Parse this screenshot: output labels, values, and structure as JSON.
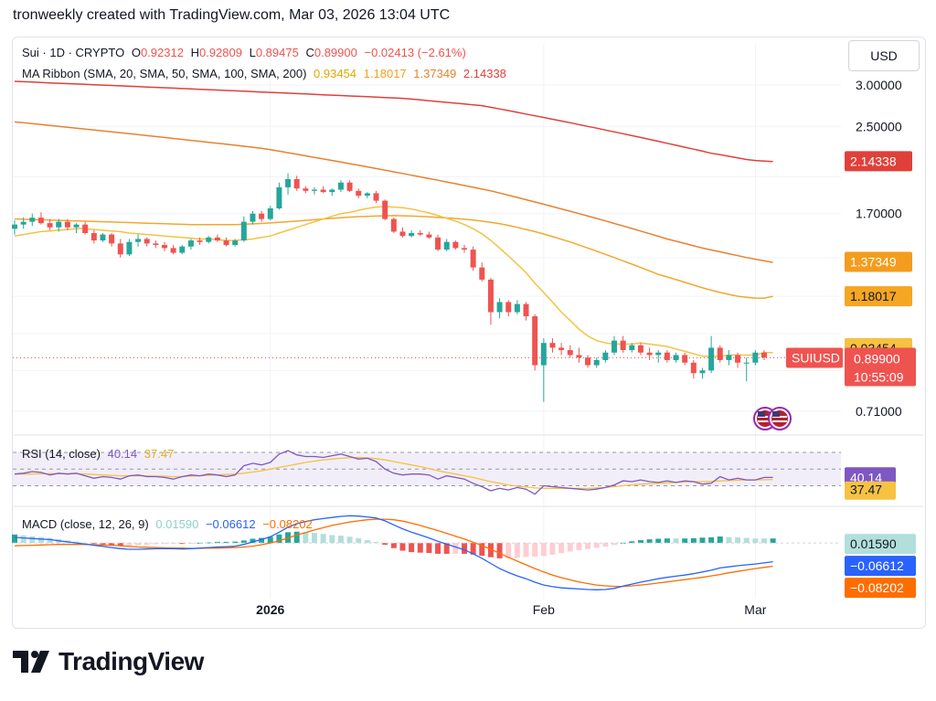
{
  "header": {
    "title": "tronweekly created with TradingView.com, Mar 03, 2026 13:04 UTC"
  },
  "currency_button": "USD",
  "logo_text": "TradingView",
  "colors": {
    "up": "#26a69a",
    "down": "#ef5350",
    "sma20": "#f5c242",
    "sma50": "#f0a830",
    "sma100": "#e8812e",
    "sma200": "#e0403a",
    "rsi": "#7e57c2",
    "macd": "#2962ff",
    "signal": "#ff6d00"
  },
  "main_legend": {
    "symbol": "Sui · 1D · CRYPTO",
    "o_label": "O",
    "o": "0.92312",
    "h_label": "H",
    "h": "0.92809",
    "l_label": "L",
    "l": "0.89475",
    "c_label": "C",
    "c": "0.89900",
    "change": "−0.02413 (−2.61%)"
  },
  "ribbon_legend": {
    "name": "MA Ribbon (SMA, 20, SMA, 50, SMA, 100, SMA, 200)",
    "v1": "0.93454",
    "v2": "1.18017",
    "v3": "1.37349",
    "v4": "2.14338"
  },
  "rsi_legend": {
    "name": "RSI (14, close)",
    "v1": "40.14",
    "v2": "37.47"
  },
  "macd_legend": {
    "name": "MACD (close, 12, 26, 9)",
    "v1": "0.01590",
    "v2": "−0.06612",
    "v3": "−0.08202"
  },
  "price_axis_ticks": [
    "3.00000",
    "2.50000",
    "1.70000",
    "0.71000"
  ],
  "price_badges": {
    "sma200": "2.14338",
    "sma100": "1.37349",
    "sma50": "1.18017",
    "sma20": "0.93454",
    "symbol": "SUIUSD",
    "last": "0.89900",
    "countdown": "10:55:09"
  },
  "rsi_badges": {
    "rsi": "40.14",
    "ma": "37.47"
  },
  "macd_badges": {
    "hist": "0.01590",
    "macd": "−0.06612",
    "signal": "−0.08202"
  },
  "x_axis_labels": [
    "2026",
    "Feb",
    "Mar"
  ],
  "chart_data": {
    "type": "candlestick",
    "interval": "1D",
    "log_scale": true,
    "ylim": [
      0.66,
      3.1
    ],
    "last_price": 0.899,
    "candles": [
      {
        "o": 1.59,
        "h": 1.65,
        "l": 1.55,
        "c": 1.62
      },
      {
        "o": 1.62,
        "h": 1.67,
        "l": 1.59,
        "c": 1.64
      },
      {
        "o": 1.64,
        "h": 1.7,
        "l": 1.61,
        "c": 1.67
      },
      {
        "o": 1.67,
        "h": 1.71,
        "l": 1.62,
        "c": 1.63
      },
      {
        "o": 1.63,
        "h": 1.66,
        "l": 1.58,
        "c": 1.6
      },
      {
        "o": 1.6,
        "h": 1.66,
        "l": 1.57,
        "c": 1.64
      },
      {
        "o": 1.64,
        "h": 1.66,
        "l": 1.58,
        "c": 1.6
      },
      {
        "o": 1.6,
        "h": 1.63,
        "l": 1.56,
        "c": 1.62
      },
      {
        "o": 1.62,
        "h": 1.64,
        "l": 1.55,
        "c": 1.56
      },
      {
        "o": 1.56,
        "h": 1.58,
        "l": 1.49,
        "c": 1.51
      },
      {
        "o": 1.51,
        "h": 1.56,
        "l": 1.5,
        "c": 1.55
      },
      {
        "o": 1.55,
        "h": 1.56,
        "l": 1.47,
        "c": 1.49
      },
      {
        "o": 1.49,
        "h": 1.52,
        "l": 1.4,
        "c": 1.42
      },
      {
        "o": 1.42,
        "h": 1.52,
        "l": 1.41,
        "c": 1.5
      },
      {
        "o": 1.5,
        "h": 1.55,
        "l": 1.47,
        "c": 1.52
      },
      {
        "o": 1.52,
        "h": 1.53,
        "l": 1.47,
        "c": 1.49
      },
      {
        "o": 1.49,
        "h": 1.51,
        "l": 1.46,
        "c": 1.48
      },
      {
        "o": 1.48,
        "h": 1.5,
        "l": 1.44,
        "c": 1.46
      },
      {
        "o": 1.46,
        "h": 1.48,
        "l": 1.42,
        "c": 1.43
      },
      {
        "o": 1.43,
        "h": 1.48,
        "l": 1.42,
        "c": 1.47
      },
      {
        "o": 1.47,
        "h": 1.52,
        "l": 1.45,
        "c": 1.51
      },
      {
        "o": 1.51,
        "h": 1.53,
        "l": 1.48,
        "c": 1.5
      },
      {
        "o": 1.5,
        "h": 1.54,
        "l": 1.49,
        "c": 1.53
      },
      {
        "o": 1.53,
        "h": 1.55,
        "l": 1.5,
        "c": 1.51
      },
      {
        "o": 1.51,
        "h": 1.53,
        "l": 1.47,
        "c": 1.48
      },
      {
        "o": 1.48,
        "h": 1.52,
        "l": 1.47,
        "c": 1.51
      },
      {
        "o": 1.51,
        "h": 1.68,
        "l": 1.5,
        "c": 1.64
      },
      {
        "o": 1.64,
        "h": 1.72,
        "l": 1.62,
        "c": 1.7
      },
      {
        "o": 1.7,
        "h": 1.72,
        "l": 1.64,
        "c": 1.66
      },
      {
        "o": 1.66,
        "h": 1.76,
        "l": 1.65,
        "c": 1.74
      },
      {
        "o": 1.74,
        "h": 1.95,
        "l": 1.73,
        "c": 1.91
      },
      {
        "o": 1.91,
        "h": 2.03,
        "l": 1.85,
        "c": 1.98
      },
      {
        "o": 1.98,
        "h": 2.01,
        "l": 1.88,
        "c": 1.9
      },
      {
        "o": 1.9,
        "h": 1.92,
        "l": 1.86,
        "c": 1.88
      },
      {
        "o": 1.88,
        "h": 1.91,
        "l": 1.85,
        "c": 1.89
      },
      {
        "o": 1.89,
        "h": 1.92,
        "l": 1.86,
        "c": 1.87
      },
      {
        "o": 1.87,
        "h": 1.9,
        "l": 1.84,
        "c": 1.89
      },
      {
        "o": 1.89,
        "h": 1.97,
        "l": 1.87,
        "c": 1.95
      },
      {
        "o": 1.95,
        "h": 1.97,
        "l": 1.87,
        "c": 1.88
      },
      {
        "o": 1.88,
        "h": 1.9,
        "l": 1.82,
        "c": 1.84
      },
      {
        "o": 1.84,
        "h": 1.87,
        "l": 1.82,
        "c": 1.86
      },
      {
        "o": 1.86,
        "h": 1.88,
        "l": 1.78,
        "c": 1.8
      },
      {
        "o": 1.8,
        "h": 1.81,
        "l": 1.65,
        "c": 1.66
      },
      {
        "o": 1.66,
        "h": 1.67,
        "l": 1.56,
        "c": 1.57
      },
      {
        "o": 1.57,
        "h": 1.6,
        "l": 1.53,
        "c": 1.54
      },
      {
        "o": 1.54,
        "h": 1.58,
        "l": 1.53,
        "c": 1.56
      },
      {
        "o": 1.56,
        "h": 1.58,
        "l": 1.54,
        "c": 1.55
      },
      {
        "o": 1.55,
        "h": 1.57,
        "l": 1.52,
        "c": 1.53
      },
      {
        "o": 1.53,
        "h": 1.55,
        "l": 1.44,
        "c": 1.45
      },
      {
        "o": 1.45,
        "h": 1.52,
        "l": 1.44,
        "c": 1.5
      },
      {
        "o": 1.5,
        "h": 1.51,
        "l": 1.45,
        "c": 1.46
      },
      {
        "o": 1.46,
        "h": 1.48,
        "l": 1.43,
        "c": 1.45
      },
      {
        "o": 1.45,
        "h": 1.47,
        "l": 1.32,
        "c": 1.34
      },
      {
        "o": 1.34,
        "h": 1.37,
        "l": 1.26,
        "c": 1.27
      },
      {
        "o": 1.27,
        "h": 1.28,
        "l": 1.04,
        "c": 1.1
      },
      {
        "o": 1.1,
        "h": 1.17,
        "l": 1.07,
        "c": 1.15
      },
      {
        "o": 1.15,
        "h": 1.16,
        "l": 1.08,
        "c": 1.1
      },
      {
        "o": 1.1,
        "h": 1.16,
        "l": 1.09,
        "c": 1.14
      },
      {
        "o": 1.14,
        "h": 1.15,
        "l": 1.06,
        "c": 1.08
      },
      {
        "o": 1.08,
        "h": 1.09,
        "l": 0.85,
        "c": 0.87
      },
      {
        "o": 0.87,
        "h": 0.98,
        "l": 0.74,
        "c": 0.96
      },
      {
        "o": 0.96,
        "h": 0.98,
        "l": 0.92,
        "c": 0.94
      },
      {
        "o": 0.94,
        "h": 0.96,
        "l": 0.91,
        "c": 0.93
      },
      {
        "o": 0.93,
        "h": 0.95,
        "l": 0.9,
        "c": 0.91
      },
      {
        "o": 0.91,
        "h": 0.94,
        "l": 0.88,
        "c": 0.9
      },
      {
        "o": 0.9,
        "h": 0.91,
        "l": 0.86,
        "c": 0.87
      },
      {
        "o": 0.87,
        "h": 0.9,
        "l": 0.86,
        "c": 0.89
      },
      {
        "o": 0.89,
        "h": 0.93,
        "l": 0.88,
        "c": 0.92
      },
      {
        "o": 0.92,
        "h": 0.99,
        "l": 0.91,
        "c": 0.97
      },
      {
        "o": 0.97,
        "h": 0.99,
        "l": 0.92,
        "c": 0.93
      },
      {
        "o": 0.93,
        "h": 0.96,
        "l": 0.92,
        "c": 0.95
      },
      {
        "o": 0.95,
        "h": 0.96,
        "l": 0.91,
        "c": 0.92
      },
      {
        "o": 0.92,
        "h": 0.94,
        "l": 0.89,
        "c": 0.91
      },
      {
        "o": 0.91,
        "h": 0.93,
        "l": 0.88,
        "c": 0.92
      },
      {
        "o": 0.92,
        "h": 0.93,
        "l": 0.88,
        "c": 0.89
      },
      {
        "o": 0.89,
        "h": 0.92,
        "l": 0.88,
        "c": 0.91
      },
      {
        "o": 0.91,
        "h": 0.92,
        "l": 0.87,
        "c": 0.88
      },
      {
        "o": 0.88,
        "h": 0.89,
        "l": 0.82,
        "c": 0.84
      },
      {
        "o": 0.84,
        "h": 0.86,
        "l": 0.82,
        "c": 0.85
      },
      {
        "o": 0.85,
        "h": 0.99,
        "l": 0.84,
        "c": 0.94
      },
      {
        "o": 0.94,
        "h": 0.95,
        "l": 0.88,
        "c": 0.89
      },
      {
        "o": 0.89,
        "h": 0.93,
        "l": 0.87,
        "c": 0.91
      },
      {
        "o": 0.91,
        "h": 0.92,
        "l": 0.86,
        "c": 0.88
      },
      {
        "o": 0.88,
        "h": 0.9,
        "l": 0.81,
        "c": 0.88
      },
      {
        "o": 0.88,
        "h": 0.93,
        "l": 0.87,
        "c": 0.92
      },
      {
        "o": 0.92,
        "h": 0.93,
        "l": 0.89,
        "c": 0.9
      }
    ],
    "sma20": [
      1.54,
      1.55,
      1.56,
      1.57,
      1.575,
      1.58,
      1.585,
      1.59,
      1.59,
      1.585,
      1.58,
      1.575,
      1.57,
      1.56,
      1.555,
      1.55,
      1.545,
      1.54,
      1.535,
      1.53,
      1.525,
      1.52,
      1.52,
      1.515,
      1.51,
      1.51,
      1.515,
      1.52,
      1.53,
      1.54,
      1.56,
      1.58,
      1.6,
      1.62,
      1.64,
      1.66,
      1.68,
      1.7,
      1.71,
      1.725,
      1.74,
      1.75,
      1.755,
      1.75,
      1.745,
      1.735,
      1.72,
      1.705,
      1.685,
      1.665,
      1.645,
      1.62,
      1.59,
      1.555,
      1.51,
      1.46,
      1.41,
      1.36,
      1.31,
      1.25,
      1.2,
      1.15,
      1.1,
      1.06,
      1.02,
      0.99,
      0.97,
      0.96,
      0.955,
      0.955,
      0.955,
      0.96,
      0.955,
      0.95,
      0.945,
      0.935,
      0.925,
      0.915,
      0.905,
      0.905,
      0.905,
      0.91,
      0.91,
      0.91,
      0.91,
      0.92,
      0.92
    ],
    "sma50": [
      1.66,
      1.658,
      1.656,
      1.654,
      1.652,
      1.65,
      1.648,
      1.646,
      1.644,
      1.642,
      1.64,
      1.638,
      1.636,
      1.634,
      1.632,
      1.63,
      1.628,
      1.626,
      1.624,
      1.622,
      1.62,
      1.62,
      1.62,
      1.62,
      1.62,
      1.62,
      1.622,
      1.625,
      1.628,
      1.632,
      1.636,
      1.64,
      1.645,
      1.65,
      1.655,
      1.66,
      1.665,
      1.67,
      1.674,
      1.678,
      1.68,
      1.682,
      1.684,
      1.685,
      1.684,
      1.682,
      1.68,
      1.676,
      1.672,
      1.668,
      1.664,
      1.658,
      1.652,
      1.644,
      1.636,
      1.626,
      1.614,
      1.6,
      1.585,
      1.57,
      1.554,
      1.536,
      1.518,
      1.5,
      1.48,
      1.46,
      1.44,
      1.42,
      1.4,
      1.38,
      1.36,
      1.34,
      1.32,
      1.3,
      1.285,
      1.27,
      1.255,
      1.24,
      1.225,
      1.212,
      1.2,
      1.19,
      1.18,
      1.175,
      1.17,
      1.17,
      1.18
    ],
    "sma100": [
      2.55,
      2.54,
      2.53,
      2.52,
      2.51,
      2.5,
      2.49,
      2.48,
      2.47,
      2.46,
      2.45,
      2.44,
      2.43,
      2.42,
      2.41,
      2.4,
      2.39,
      2.38,
      2.37,
      2.36,
      2.35,
      2.34,
      2.33,
      2.32,
      2.31,
      2.3,
      2.29,
      2.28,
      2.27,
      2.255,
      2.24,
      2.225,
      2.21,
      2.195,
      2.18,
      2.165,
      2.15,
      2.135,
      2.12,
      2.105,
      2.09,
      2.075,
      2.06,
      2.045,
      2.03,
      2.015,
      2.0,
      1.985,
      1.97,
      1.955,
      1.94,
      1.925,
      1.91,
      1.895,
      1.88,
      1.862,
      1.844,
      1.826,
      1.808,
      1.79,
      1.772,
      1.754,
      1.736,
      1.718,
      1.7,
      1.682,
      1.664,
      1.646,
      1.628,
      1.61,
      1.592,
      1.574,
      1.556,
      1.538,
      1.52,
      1.505,
      1.49,
      1.475,
      1.46,
      1.448,
      1.436,
      1.424,
      1.412,
      1.4,
      1.39,
      1.38,
      1.37
    ],
    "sma200": [
      3.05,
      3.045,
      3.04,
      3.035,
      3.03,
      3.025,
      3.02,
      3.015,
      3.01,
      3.005,
      3.0,
      2.995,
      2.99,
      2.985,
      2.98,
      2.975,
      2.97,
      2.965,
      2.96,
      2.955,
      2.95,
      2.945,
      2.94,
      2.935,
      2.93,
      2.925,
      2.92,
      2.915,
      2.91,
      2.905,
      2.9,
      2.895,
      2.89,
      2.885,
      2.88,
      2.875,
      2.87,
      2.865,
      2.86,
      2.855,
      2.85,
      2.845,
      2.84,
      2.835,
      2.83,
      2.82,
      2.81,
      2.8,
      2.79,
      2.78,
      2.77,
      2.76,
      2.75,
      2.74,
      2.72,
      2.7,
      2.68,
      2.66,
      2.64,
      2.62,
      2.6,
      2.58,
      2.56,
      2.54,
      2.52,
      2.5,
      2.48,
      2.46,
      2.44,
      2.42,
      2.4,
      2.38,
      2.36,
      2.34,
      2.32,
      2.3,
      2.28,
      2.26,
      2.24,
      2.22,
      2.205,
      2.19,
      2.175,
      2.16,
      2.15,
      2.145,
      2.14
    ],
    "rsi": [
      44,
      45,
      47,
      46,
      43,
      45,
      44,
      45,
      42,
      39,
      41,
      40,
      38,
      42,
      43,
      41,
      41,
      40,
      38,
      41,
      43,
      42,
      44,
      43,
      41,
      43,
      54,
      57,
      55,
      58,
      68,
      72,
      67,
      65,
      65,
      64,
      66,
      68,
      65,
      62,
      63,
      59,
      50,
      45,
      43,
      44,
      44,
      43,
      38,
      42,
      40,
      38,
      33,
      29,
      24,
      27,
      25,
      28,
      26,
      20,
      30,
      29,
      28,
      27,
      26,
      25,
      26,
      28,
      31,
      36,
      35,
      37,
      35,
      34,
      36,
      34,
      36,
      35,
      32,
      33,
      41,
      37,
      39,
      37,
      37,
      40,
      40
    ],
    "rsi_ma": [
      44,
      44,
      44,
      44.5,
      44.5,
      44.5,
      44.5,
      44.5,
      44,
      43.5,
      43,
      42.5,
      42,
      42,
      42,
      42,
      41.5,
      41.5,
      41,
      41,
      41.5,
      42,
      42.5,
      43,
      43.5,
      44,
      45,
      46.5,
      48,
      50,
      52,
      54,
      56,
      58,
      59.5,
      61,
      62,
      63,
      63.5,
      64,
      63.5,
      62.5,
      61,
      59,
      57,
      55,
      53,
      50.5,
      48,
      46,
      44,
      42,
      40,
      37.5,
      35,
      33,
      31,
      29.5,
      28.5,
      27.5,
      27,
      27,
      27,
      27,
      27,
      27,
      27.5,
      28,
      29,
      30,
      31,
      32,
      32.5,
      33,
      33.5,
      34,
      34.5,
      35,
      35,
      35.2,
      35.8,
      36.2,
      36.6,
      36.9,
      37.1,
      37.3,
      37.47
    ],
    "rsi_levels": {
      "upper": 70,
      "lower": 30,
      "mid": 50
    },
    "macd": [
      0.02,
      0.018,
      0.016,
      0.014,
      0.012,
      0.008,
      0.004,
      0.0,
      -0.004,
      -0.008,
      -0.012,
      -0.016,
      -0.02,
      -0.022,
      -0.022,
      -0.021,
      -0.02,
      -0.02,
      -0.02,
      -0.021,
      -0.02,
      -0.018,
      -0.016,
      -0.014,
      -0.013,
      -0.011,
      -0.005,
      0.004,
      0.012,
      0.022,
      0.038,
      0.056,
      0.068,
      0.076,
      0.082,
      0.086,
      0.09,
      0.094,
      0.096,
      0.095,
      0.092,
      0.088,
      0.078,
      0.064,
      0.05,
      0.038,
      0.028,
      0.018,
      0.006,
      -0.004,
      -0.014,
      -0.024,
      -0.038,
      -0.054,
      -0.072,
      -0.09,
      -0.104,
      -0.116,
      -0.126,
      -0.138,
      -0.148,
      -0.154,
      -0.158,
      -0.16,
      -0.162,
      -0.164,
      -0.165,
      -0.164,
      -0.16,
      -0.152,
      -0.145,
      -0.138,
      -0.132,
      -0.126,
      -0.121,
      -0.117,
      -0.113,
      -0.108,
      -0.102,
      -0.096,
      -0.088,
      -0.084,
      -0.08,
      -0.077,
      -0.074,
      -0.07,
      -0.066
    ],
    "signal": [
      -0.01,
      -0.009,
      -0.008,
      -0.007,
      -0.006,
      -0.005,
      -0.005,
      -0.005,
      -0.005,
      -0.006,
      -0.007,
      -0.008,
      -0.01,
      -0.012,
      -0.014,
      -0.015,
      -0.016,
      -0.017,
      -0.018,
      -0.018,
      -0.019,
      -0.019,
      -0.018,
      -0.018,
      -0.017,
      -0.016,
      -0.014,
      -0.011,
      -0.006,
      0.0,
      0.008,
      0.018,
      0.028,
      0.037,
      0.046,
      0.054,
      0.062,
      0.068,
      0.074,
      0.078,
      0.082,
      0.084,
      0.084,
      0.082,
      0.077,
      0.07,
      0.062,
      0.053,
      0.044,
      0.034,
      0.024,
      0.014,
      0.003,
      -0.009,
      -0.022,
      -0.036,
      -0.05,
      -0.064,
      -0.077,
      -0.09,
      -0.102,
      -0.113,
      -0.122,
      -0.13,
      -0.137,
      -0.143,
      -0.148,
      -0.151,
      -0.153,
      -0.153,
      -0.151,
      -0.148,
      -0.145,
      -0.141,
      -0.137,
      -0.133,
      -0.129,
      -0.125,
      -0.121,
      -0.116,
      -0.111,
      -0.105,
      -0.1,
      -0.095,
      -0.09,
      -0.086,
      -0.082
    ],
    "histogram_positive_light_tail": 0.0159,
    "x_labels": [
      {
        "label": "2026",
        "index": 29
      },
      {
        "label": "Feb",
        "index": 60
      },
      {
        "label": "Mar",
        "index": 84
      }
    ]
  }
}
